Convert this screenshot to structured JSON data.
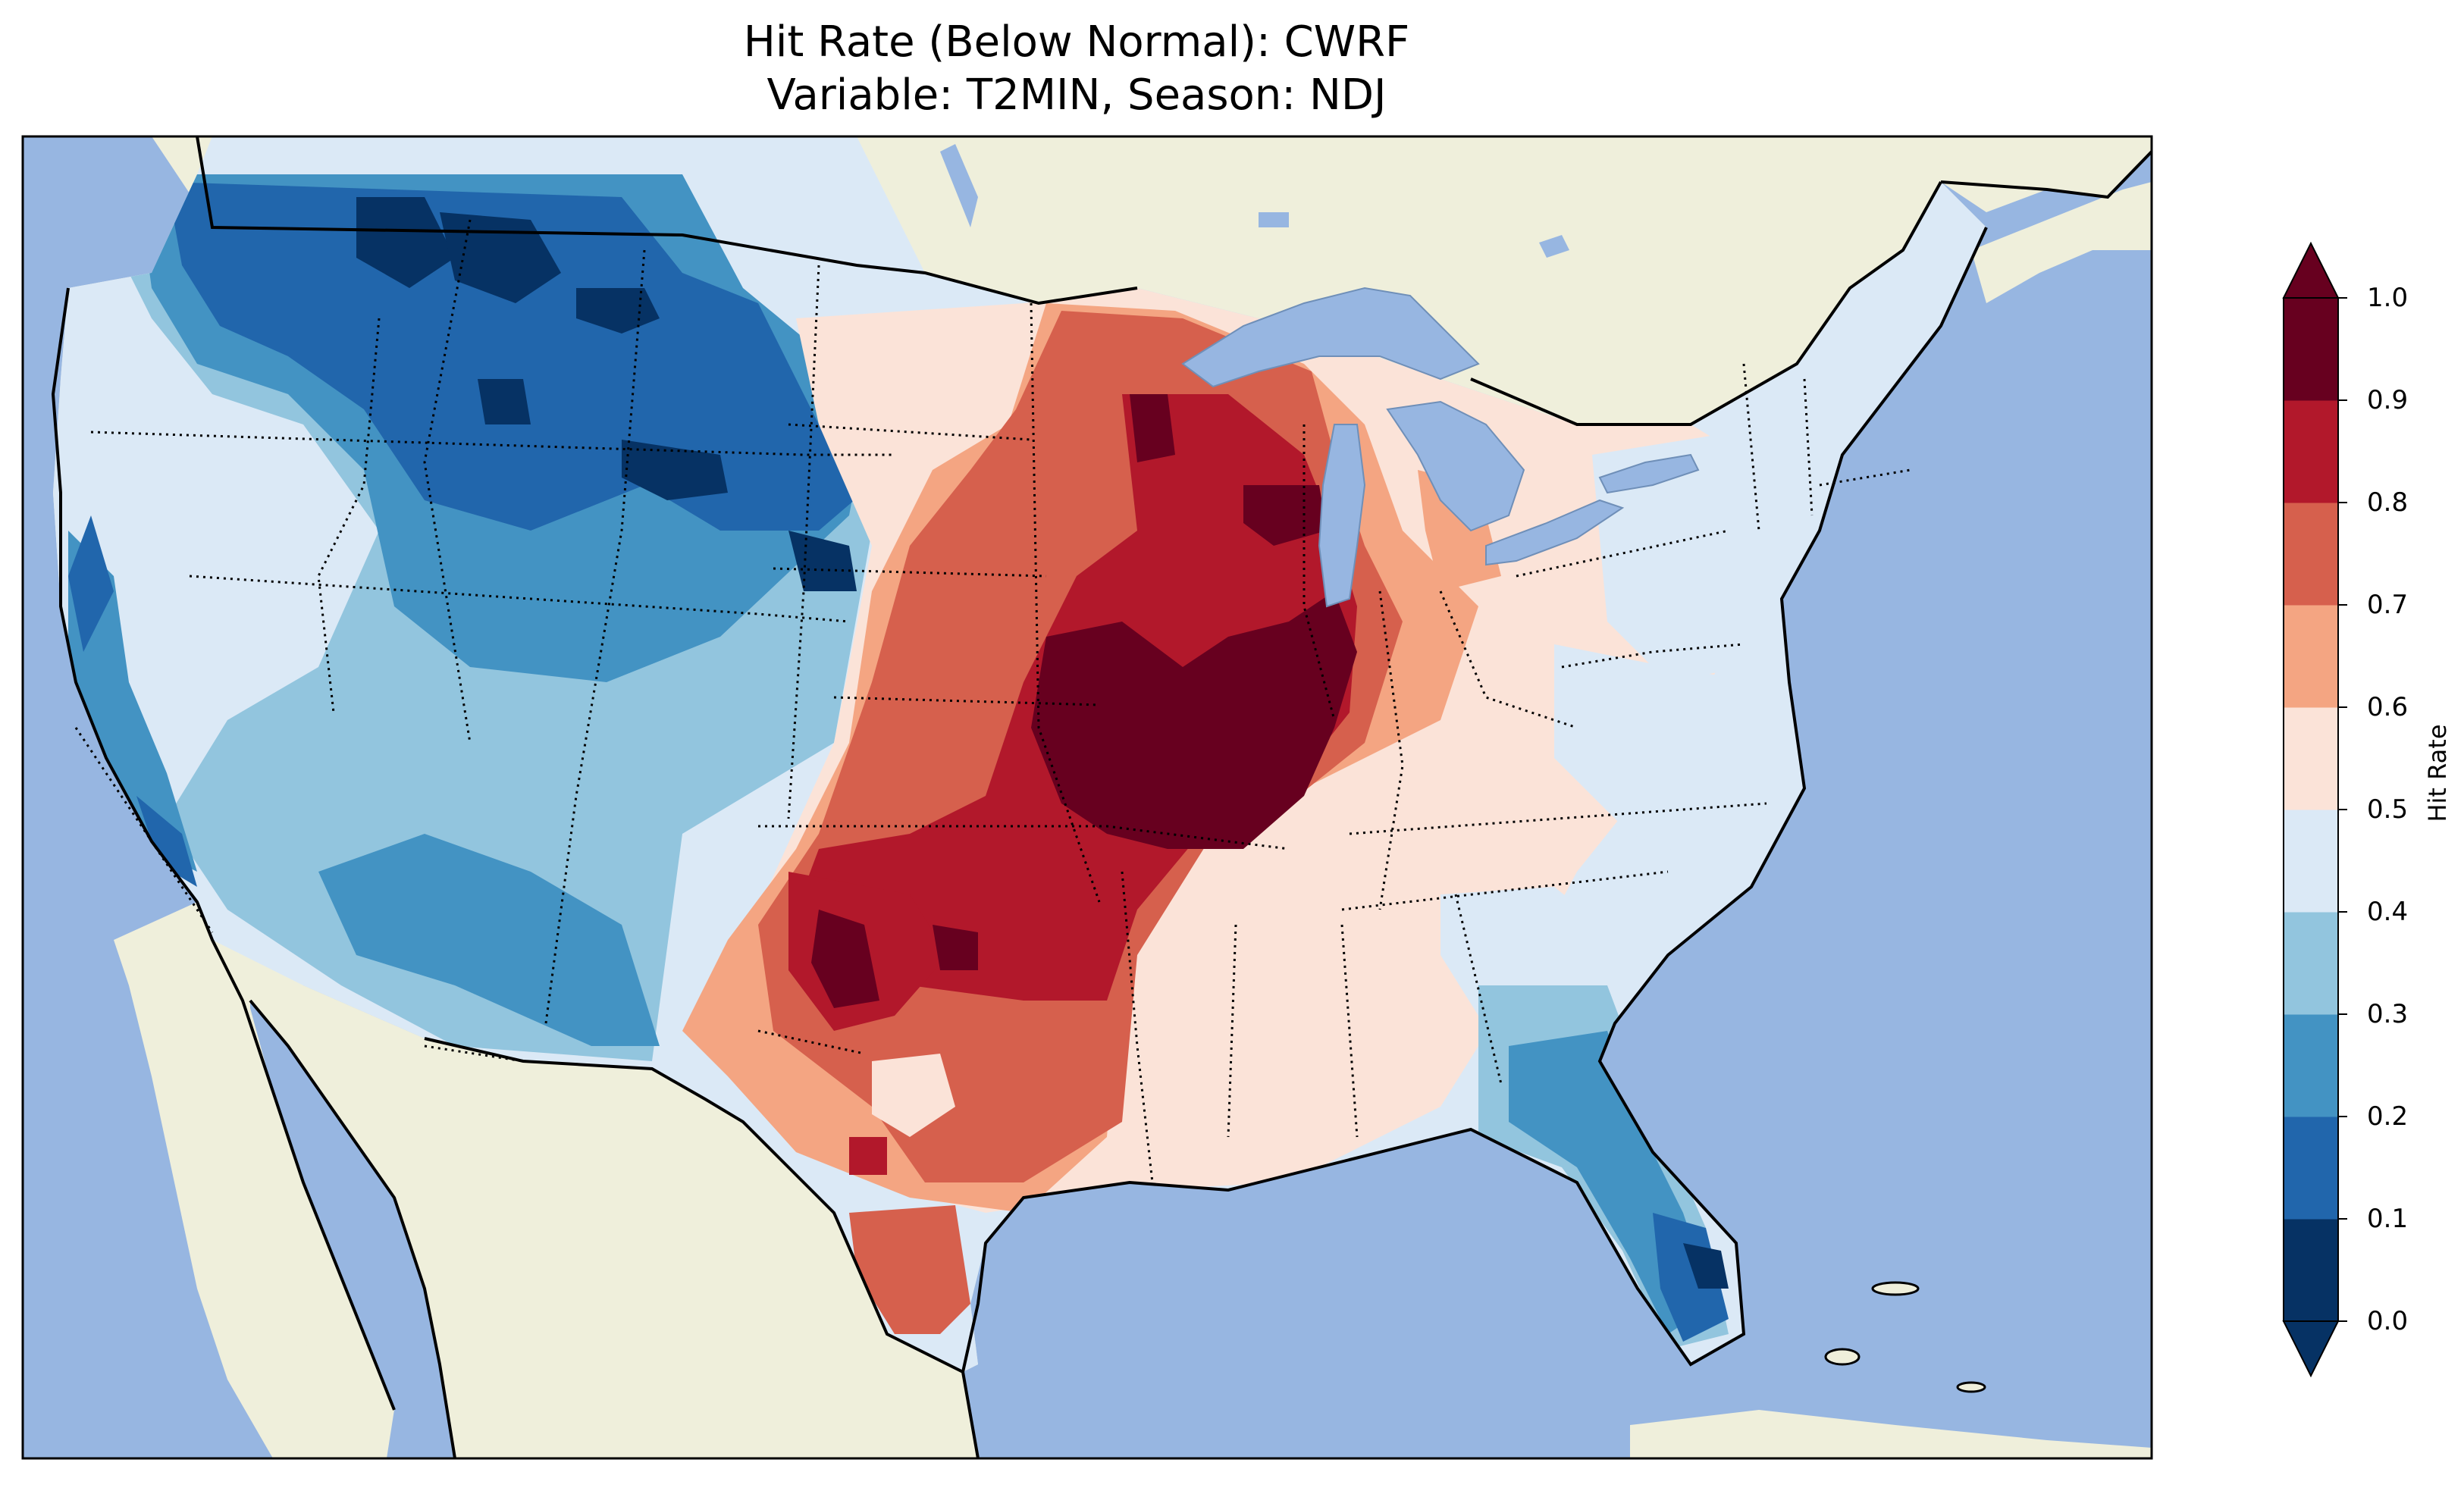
{
  "title": {
    "line1": "Hit Rate (Below Normal): CWRF",
    "line2": "Variable: T2MIN, Season: NDJ"
  },
  "colorbar": {
    "label": "Hit Rate",
    "ticks": [
      "0.0",
      "0.1",
      "0.2",
      "0.3",
      "0.4",
      "0.5",
      "0.6",
      "0.7",
      "0.8",
      "0.9",
      "1.0"
    ],
    "bins": [
      {
        "range": [
          0.0,
          0.1
        ],
        "color": "#063264"
      },
      {
        "range": [
          0.1,
          0.2
        ],
        "color": "#2166ac"
      },
      {
        "range": [
          0.2,
          0.3
        ],
        "color": "#4393c3"
      },
      {
        "range": [
          0.3,
          0.4
        ],
        "color": "#92c5de"
      },
      {
        "range": [
          0.4,
          0.5
        ],
        "color": "#dbe9f6"
      },
      {
        "range": [
          0.5,
          0.6
        ],
        "color": "#fbe3d8"
      },
      {
        "range": [
          0.6,
          0.7
        ],
        "color": "#f4a582"
      },
      {
        "range": [
          0.7,
          0.8
        ],
        "color": "#d6604d"
      },
      {
        "range": [
          0.8,
          0.9
        ],
        "color": "#b2182b"
      },
      {
        "range": [
          0.9,
          1.0
        ],
        "color": "#67001f"
      }
    ],
    "extend": "both"
  },
  "map_colors": {
    "ocean": "#97b6e1",
    "land": "#efefdb",
    "lakes": "#97b6e1"
  }
}
